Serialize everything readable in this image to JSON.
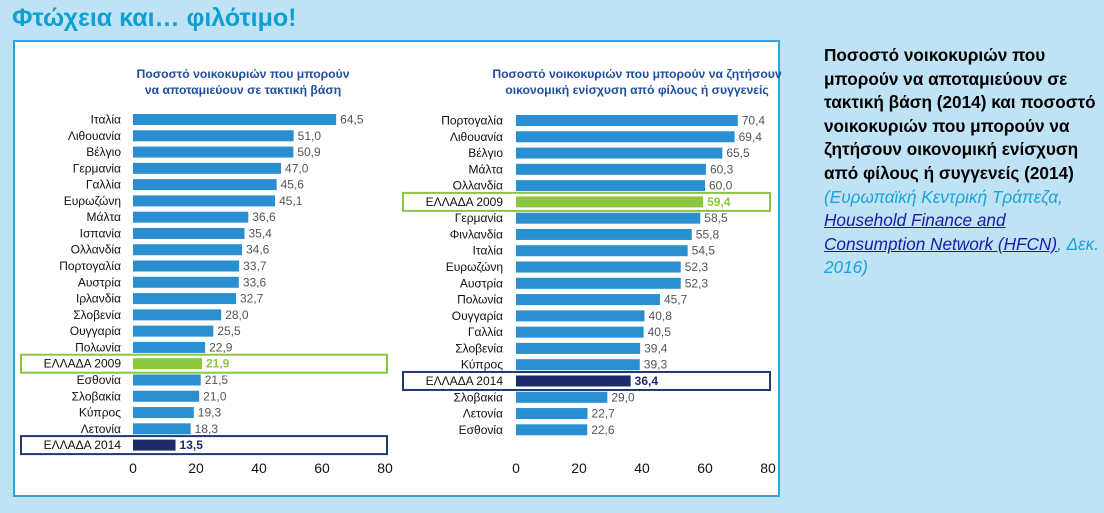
{
  "page": {
    "title": "Φτώχεια και… φιλότιμο!"
  },
  "side": {
    "heading": "Ποσοστό νοικοκυριών που μπορούν να αποταμιεύουν σε τακτική βάση (2014) και ποσοστό νοικοκυριών που μπορούν να  ζητήσουν οικονομική ενίσχυση από φίλους ή συγγενείς (2014)",
    "source_prefix": "(Ευρωπαϊκή Κεντρική Τράπεζα, ",
    "source_link": "Household Finance and Consumption Network (HFCN)",
    "source_suffix": ", Δεκ. 2016)"
  },
  "chart_data": [
    {
      "type": "bar",
      "orientation": "horizontal",
      "title_lines": [
        "Ποσοστό νοικοκυριών που μπορούν",
        "να αποταμιεύουν  σε τακτική βάση"
      ],
      "categories": [
        "Ιταλία",
        "Λιθουανία",
        "Βέλγιο",
        "Γερμανία",
        "Γαλλία",
        "Ευρωζώνη",
        "Μάλτα",
        "Ισπανία",
        "Ολλανδία",
        "Πορτογαλία",
        "Αυστρία",
        "Ιρλανδία",
        "Σλοβενία",
        "Ουγγαρία",
        "Πολωνία",
        "ΕΛΛΑΔΑ 2009",
        "Εσθονία",
        "Σλοβακία",
        "Κύπρος",
        "Λετονία",
        "ΕΛΛΑΔΑ 2014"
      ],
      "values": [
        64.5,
        51.0,
        50.9,
        47.0,
        45.6,
        45.1,
        36.6,
        35.4,
        34.6,
        33.7,
        33.6,
        32.7,
        28.0,
        25.5,
        22.9,
        21.9,
        21.5,
        21.0,
        19.3,
        18.3,
        13.5
      ],
      "value_labels": [
        "64,5",
        "51,0",
        "50,9",
        "47,0",
        "45,6",
        "45,1",
        "36,6",
        "35,4",
        "34,6",
        "33,7",
        "33,6",
        "32,7",
        "28,0",
        "25,5",
        "22,9",
        "21,9",
        "21,5",
        "21,0",
        "19,3",
        "18,3",
        "13,5"
      ],
      "highlight": {
        "ΕΛΛΑΔΑ 2009": "green",
        "ΕΛΛΑΔΑ 2014": "navy"
      },
      "xlim": [
        0,
        80
      ],
      "xticks": [
        0,
        20,
        40,
        60,
        80
      ]
    },
    {
      "type": "bar",
      "orientation": "horizontal",
      "title_lines": [
        "Ποσοστό νοικοκυριών που μπορούν να ζητήσουν",
        "οικονομική ενίσχυση από φίλους ή συγγενείς"
      ],
      "categories": [
        "Πορτογαλία",
        "Λιθουανία",
        "Βέλγιο",
        "Μάλτα",
        "Ολλανδία",
        "ΕΛΛΑΔΑ 2009",
        "Γερμανία",
        "Φινλανδία",
        "Ιταλία",
        "Ευρωζώνη",
        "Αυστρία",
        "Πολωνία",
        "Ουγγαρία",
        "Γαλλία",
        "Σλοβενία",
        "Κύπρος",
        "ΕΛΛΑΔΑ 2014",
        "Σλοβακία",
        "Λετονία",
        "Εσθονία"
      ],
      "values": [
        70.4,
        69.4,
        65.5,
        60.3,
        60.0,
        59.4,
        58.5,
        55.8,
        54.5,
        52.3,
        52.3,
        45.7,
        40.8,
        40.5,
        39.4,
        39.3,
        36.4,
        29.0,
        22.7,
        22.6
      ],
      "value_labels": [
        "70,4",
        "69,4",
        "65,5",
        "60,3",
        "60,0",
        "59,4",
        "58,5",
        "55,8",
        "54,5",
        "52,3",
        "52,3",
        "45,7",
        "40,8",
        "40,5",
        "39,4",
        "39,3",
        "36,4",
        "29,0",
        "22,7",
        "22,6"
      ],
      "highlight": {
        "ΕΛΛΑΔΑ 2009": "green",
        "ΕΛΛΑΔΑ 2014": "navy"
      },
      "xlim": [
        0,
        80
      ],
      "xticks": [
        0,
        20,
        40,
        60,
        80
      ]
    }
  ],
  "colors": {
    "bar": "#2a8fd0",
    "green_bar": "#8cc63f",
    "green_box": "#8cc63f",
    "navy_bar": "#1f2a6b",
    "navy_box": "#1f3a70",
    "title": "#1f4e9a",
    "label": "#111111",
    "value": "#555555"
  }
}
